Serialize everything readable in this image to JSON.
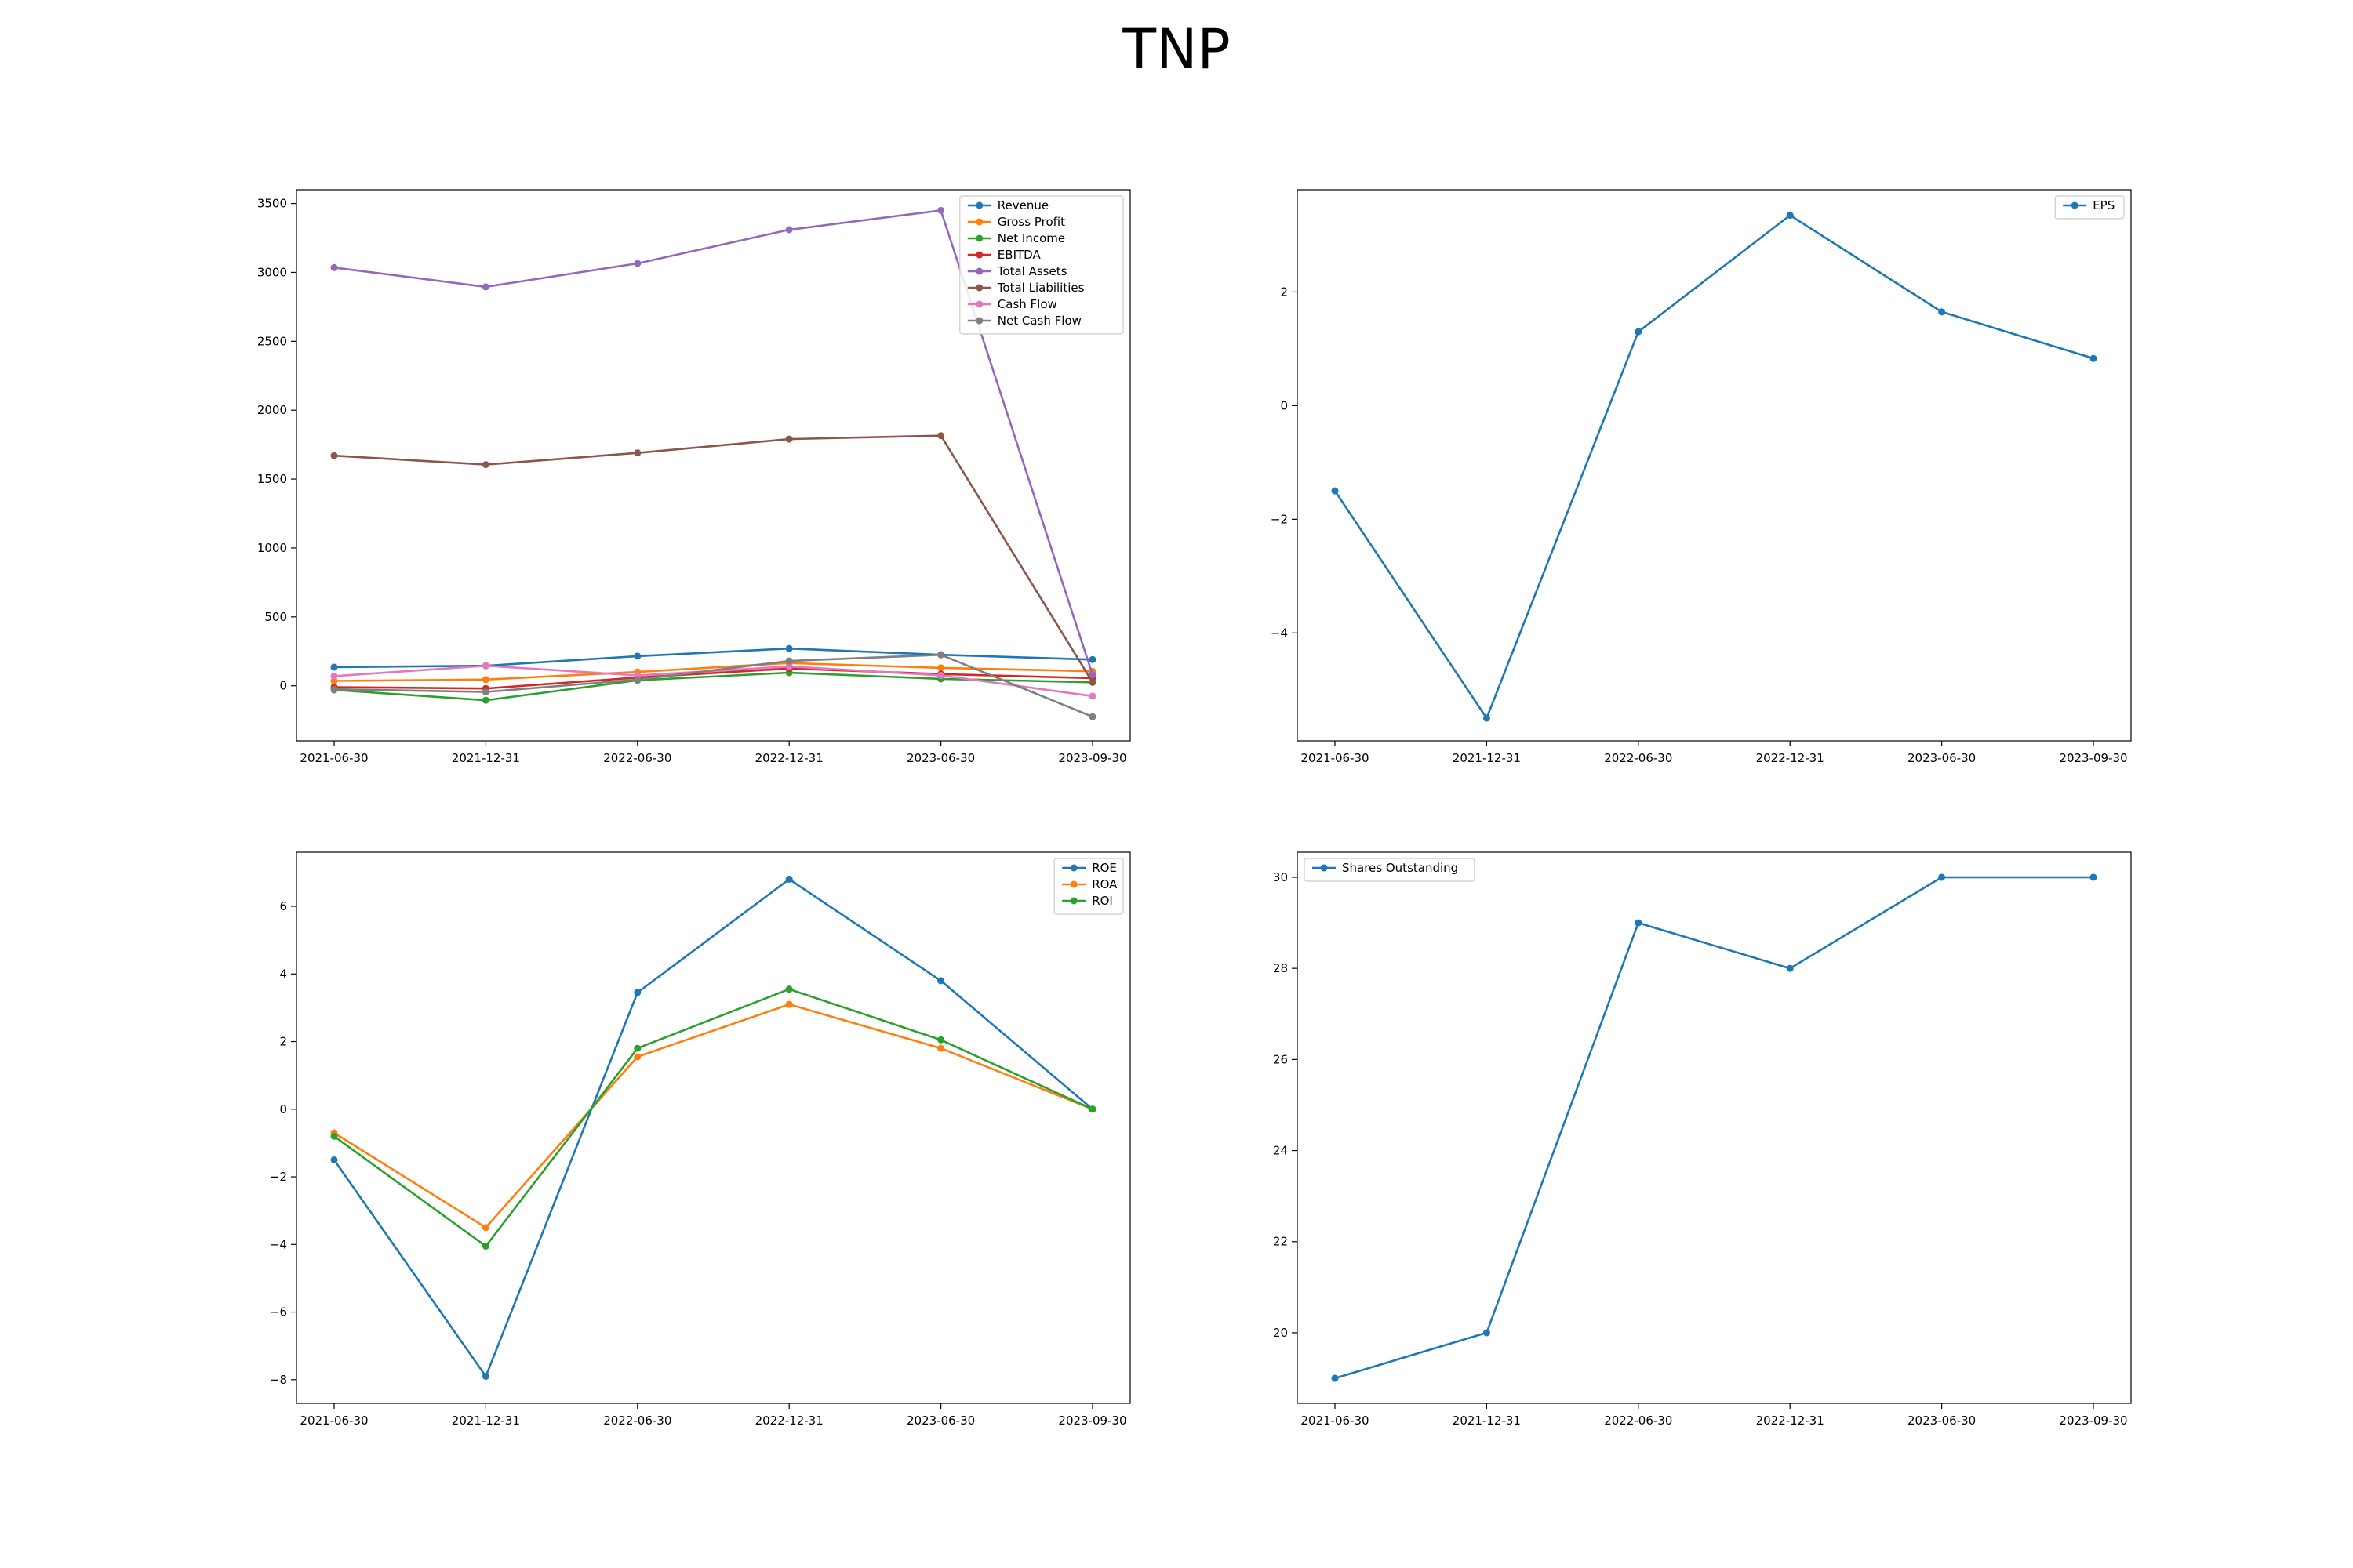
{
  "title": "TNP",
  "chart_data": [
    {
      "type": "line",
      "categories": [
        "2021-06-30",
        "2021-12-31",
        "2022-06-30",
        "2022-12-31",
        "2023-06-30",
        "2023-09-30"
      ],
      "ylim": [
        -400,
        3600
      ],
      "yticks": [
        0,
        500,
        1000,
        1500,
        2000,
        2500,
        3000,
        3500
      ],
      "legend": "upper-right",
      "grid": false,
      "series": [
        {
          "name": "Revenue",
          "color": "#1f77b4",
          "values": [
            135,
            145,
            215,
            270,
            225,
            190
          ]
        },
        {
          "name": "Gross Profit",
          "color": "#ff7f0e",
          "values": [
            35,
            45,
            100,
            165,
            130,
            105
          ]
        },
        {
          "name": "Net Income",
          "color": "#2ca02c",
          "values": [
            -30,
            -105,
            40,
            95,
            50,
            25
          ]
        },
        {
          "name": "EBITDA",
          "color": "#d62728",
          "values": [
            -10,
            -20,
            60,
            125,
            85,
            55
          ]
        },
        {
          "name": "Total Assets",
          "color": "#9467bd",
          "values": [
            3035,
            2895,
            3065,
            3310,
            3450,
            80
          ]
        },
        {
          "name": "Total Liabilities",
          "color": "#8c564b",
          "values": [
            1670,
            1605,
            1690,
            1790,
            1815,
            25
          ]
        },
        {
          "name": "Cash Flow",
          "color": "#e377c2",
          "values": [
            70,
            145,
            75,
            140,
            75,
            -75
          ]
        },
        {
          "name": "Net Cash Flow",
          "color": "#7f7f7f",
          "values": [
            -25,
            -45,
            45,
            180,
            225,
            -225
          ]
        }
      ]
    },
    {
      "type": "line",
      "categories": [
        "2021-06-30",
        "2021-12-31",
        "2022-06-30",
        "2022-12-31",
        "2023-06-30",
        "2023-09-30"
      ],
      "ylim": [
        -5.9,
        3.8
      ],
      "yticks": [
        -4,
        -2,
        0,
        2
      ],
      "legend": "upper-right",
      "grid": false,
      "series": [
        {
          "name": "EPS",
          "color": "#1f77b4",
          "values": [
            -1.5,
            -5.5,
            1.3,
            3.35,
            1.65,
            0.83
          ]
        }
      ]
    },
    {
      "type": "line",
      "categories": [
        "2021-06-30",
        "2021-12-31",
        "2022-06-30",
        "2022-12-31",
        "2023-06-30",
        "2023-09-30"
      ],
      "ylim": [
        -8.7,
        7.6
      ],
      "yticks": [
        -8,
        -6,
        -4,
        -2,
        0,
        2,
        4,
        6
      ],
      "legend": "upper-right",
      "grid": false,
      "series": [
        {
          "name": "ROE",
          "color": "#1f77b4",
          "values": [
            -1.5,
            -7.9,
            3.45,
            6.8,
            3.8,
            0.0
          ]
        },
        {
          "name": "ROA",
          "color": "#ff7f0e",
          "values": [
            -0.7,
            -3.5,
            1.55,
            3.1,
            1.8,
            0.0
          ]
        },
        {
          "name": "ROI",
          "color": "#2ca02c",
          "values": [
            -0.8,
            -4.05,
            1.8,
            3.55,
            2.05,
            0.0
          ]
        }
      ]
    },
    {
      "type": "line",
      "categories": [
        "2021-06-30",
        "2021-12-31",
        "2022-06-30",
        "2022-12-31",
        "2023-06-30",
        "2023-09-30"
      ],
      "ylim": [
        18.45,
        30.55
      ],
      "yticks": [
        20,
        22,
        24,
        26,
        28,
        30
      ],
      "legend": "upper-left",
      "grid": false,
      "series": [
        {
          "name": "Shares Outstanding",
          "color": "#1f77b4",
          "values": [
            19,
            20,
            29,
            28,
            30,
            30
          ]
        }
      ]
    }
  ]
}
